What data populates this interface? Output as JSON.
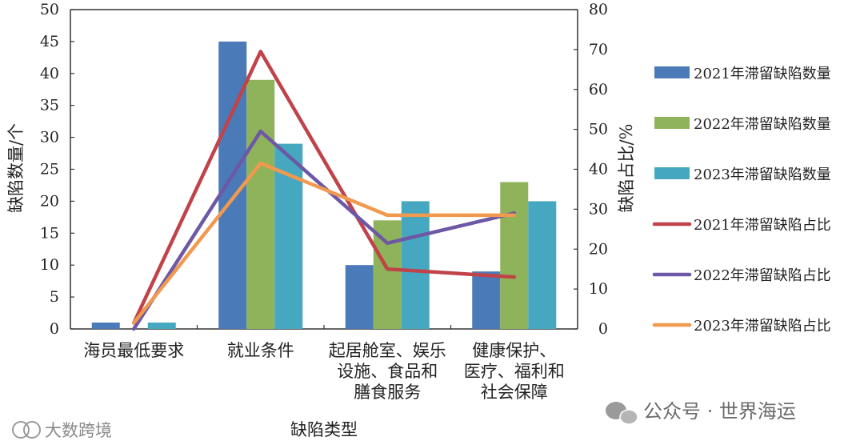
{
  "chart_data": {
    "type": "bar",
    "categories": [
      [
        "海员最低要求"
      ],
      [
        "就业条件"
      ],
      [
        "起居舱室、娱乐",
        "设施、食品和",
        "膳食服务"
      ],
      [
        "健康保护、",
        "医疗、福利和",
        "社会保障"
      ]
    ],
    "xlabel": "缺陷类型",
    "ylabel": "缺陷数量/个",
    "y2label": "缺陷占比/%",
    "ylim": [
      0,
      50
    ],
    "y2lim": [
      0,
      80
    ],
    "yticks": [
      0,
      5,
      10,
      15,
      20,
      25,
      30,
      35,
      40,
      45,
      50
    ],
    "y2ticks": [
      0,
      10,
      20,
      30,
      40,
      50,
      60,
      70,
      80
    ],
    "bar_series": [
      {
        "name": "2021年滞留缺陷数量",
        "values": [
          1,
          45,
          10,
          9
        ],
        "color": "#4a7ab8"
      },
      {
        "name": "2022年滞留缺陷数量",
        "values": [
          0,
          39,
          17,
          23
        ],
        "color": "#8fb35a"
      },
      {
        "name": "2023年滞留缺陷数量",
        "values": [
          1,
          29,
          20,
          20
        ],
        "color": "#46a8c0"
      }
    ],
    "line_series": [
      {
        "name": "2021年滞留缺陷占比",
        "values": [
          1.5,
          69.5,
          15,
          13
        ],
        "color": "#c0434a"
      },
      {
        "name": "2022年滞留缺陷占比",
        "values": [
          0,
          49.5,
          21.5,
          29
        ],
        "color": "#6d58a6"
      },
      {
        "name": "2023年滞留缺陷占比",
        "values": [
          1.5,
          41.5,
          28.5,
          28.5
        ],
        "color": "#f0994f"
      }
    ],
    "legend_position": "right"
  },
  "watermarks": {
    "left": "大数跨境",
    "right": "公众号 · 世界海运"
  }
}
